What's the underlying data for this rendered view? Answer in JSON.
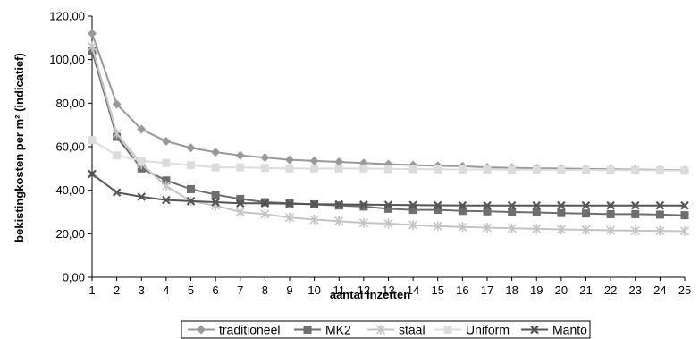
{
  "chart_data": {
    "type": "line",
    "xlabel": "aantal inzetten",
    "ylabel": "bekistingkosten per m² (indicatief)",
    "x": [
      1,
      2,
      3,
      4,
      5,
      6,
      7,
      8,
      9,
      10,
      11,
      12,
      13,
      14,
      15,
      16,
      17,
      18,
      19,
      20,
      21,
      22,
      23,
      24,
      25
    ],
    "x_ticks": [
      "1",
      "2",
      "3",
      "4",
      "5",
      "6",
      "7",
      "8",
      "9",
      "10",
      "11",
      "12",
      "13",
      "14",
      "15",
      "16",
      "17",
      "18",
      "19",
      "20",
      "21",
      "22",
      "23",
      "24",
      "25"
    ],
    "ylim": [
      0,
      120
    ],
    "y_ticks": [
      0,
      20,
      40,
      60,
      80,
      100,
      120
    ],
    "y_tick_labels": [
      "0,00",
      "20,00",
      "40,00",
      "60,00",
      "80,00",
      "100,00",
      "120,00"
    ],
    "grid": false,
    "legend_position": "bottom",
    "series": [
      {
        "name": "traditioneel",
        "color": "#999999",
        "marker": "diamond",
        "values": [
          112,
          79.5,
          68,
          62.5,
          59.5,
          57.5,
          56,
          55,
          54,
          53.5,
          53,
          52.5,
          52,
          51.5,
          51.2,
          51,
          50.5,
          50.3,
          50.1,
          50,
          49.8,
          49.6,
          49.5,
          49.3,
          49.2
        ]
      },
      {
        "name": "MK2",
        "color": "#6e6e6e",
        "marker": "square",
        "values": [
          104,
          64.5,
          50,
          44.5,
          40.5,
          38,
          36,
          34.5,
          34,
          33.5,
          33,
          32.5,
          31.5,
          31,
          31,
          30.5,
          30.3,
          30,
          29.8,
          29.5,
          29.3,
          29,
          29,
          28.8,
          28.5
        ]
      },
      {
        "name": "staal",
        "color": "#c4c4c4",
        "marker": "star",
        "values": [
          106,
          66,
          52,
          42,
          35,
          33,
          30,
          29,
          27.5,
          26.5,
          25.8,
          25,
          24.7,
          24,
          23.5,
          23.1,
          22.8,
          22.5,
          22.3,
          22,
          21.8,
          21.6,
          21.4,
          21.3,
          21.2
        ]
      },
      {
        "name": "Uniform",
        "color": "#dcdcdc",
        "marker": "square",
        "values": [
          63,
          56,
          53.5,
          52.5,
          51.5,
          50.5,
          50.5,
          50.2,
          50,
          50,
          50,
          50,
          49.8,
          49.7,
          49.6,
          49.5,
          49.5,
          49.4,
          49.4,
          49.3,
          49.3,
          49.2,
          49.2,
          49.1,
          49
        ]
      },
      {
        "name": "Manto",
        "color": "#555555",
        "marker": "x",
        "values": [
          47.5,
          39,
          37,
          35.5,
          35,
          34.5,
          34,
          34,
          33.8,
          33.6,
          33.5,
          33.4,
          33.3,
          33.2,
          33.1,
          33,
          33,
          33,
          33,
          33,
          33,
          33,
          33,
          33,
          33
        ]
      }
    ]
  }
}
